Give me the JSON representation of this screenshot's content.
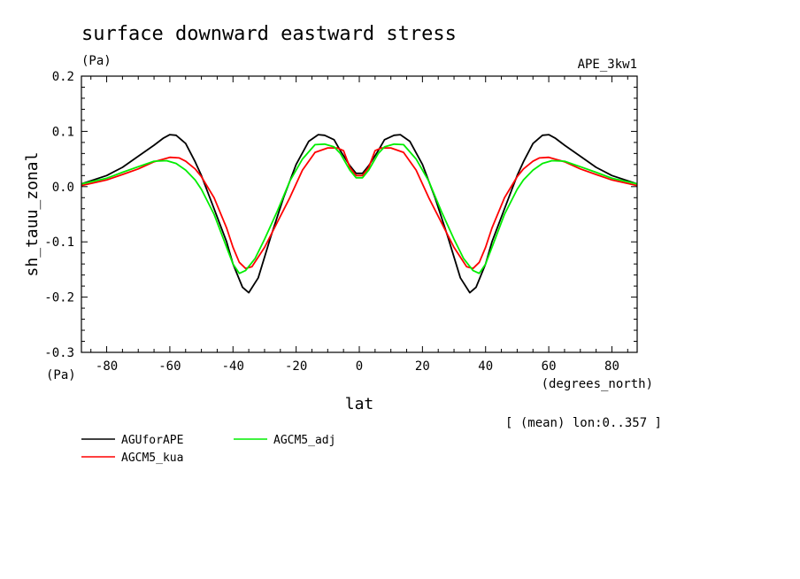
{
  "chart_data": {
    "type": "line",
    "title": "surface downward eastward stress",
    "title_units": "(Pa)",
    "run_label": "APE_3kw1",
    "ylabel": "sh_tauu_zonal",
    "y_units": "(Pa)",
    "xlabel": "lat",
    "x_units": "(degrees_north)",
    "note": "[ (mean) lon:0..357 ]",
    "xlim": [
      -88,
      88
    ],
    "ylim": [
      -0.3,
      0.2
    ],
    "x_ticks": [
      "-80",
      "-60",
      "-40",
      "-20",
      "0",
      "20",
      "40",
      "60",
      "80"
    ],
    "y_ticks": [
      "0.2",
      "0.1",
      "0.0",
      "-0.1",
      "-0.2",
      "-0.3"
    ],
    "grid": false,
    "series": [
      {
        "name": "AGUforAPE",
        "color": "#000000",
        "x": [
          -88,
          -80,
          -75,
          -70,
          -65,
          -62,
          -60,
          -58,
          -55,
          -52,
          -50,
          -46,
          -42,
          -40,
          -37,
          -35,
          -32,
          -28,
          -24,
          -20,
          -16,
          -13,
          -11,
          -8,
          -6,
          -3,
          -1,
          0,
          1,
          3,
          6,
          8,
          11,
          13,
          16,
          20,
          24,
          28,
          32,
          35,
          37,
          40,
          42,
          46,
          50,
          52,
          55,
          58,
          60,
          62,
          65,
          70,
          75,
          80,
          88
        ],
        "y": [
          0.005,
          0.02,
          0.035,
          0.055,
          0.075,
          0.088,
          0.094,
          0.093,
          0.078,
          0.045,
          0.02,
          -0.04,
          -0.1,
          -0.14,
          -0.182,
          -0.192,
          -0.165,
          -0.09,
          -0.02,
          0.04,
          0.082,
          0.094,
          0.093,
          0.085,
          0.065,
          0.038,
          0.024,
          0.024,
          0.024,
          0.038,
          0.065,
          0.085,
          0.093,
          0.094,
          0.082,
          0.04,
          -0.02,
          -0.09,
          -0.165,
          -0.192,
          -0.182,
          -0.14,
          -0.1,
          -0.04,
          0.02,
          0.045,
          0.078,
          0.093,
          0.094,
          0.088,
          0.075,
          0.055,
          0.035,
          0.02,
          0.005
        ]
      },
      {
        "name": "AGCM5_kua",
        "color": "#ff0000",
        "x": [
          -88,
          -80,
          -75,
          -70,
          -65,
          -60,
          -57,
          -55,
          -52,
          -50,
          -46,
          -42,
          -40,
          -38,
          -36,
          -34,
          -30,
          -26,
          -22,
          -18,
          -14,
          -10,
          -7,
          -5,
          -3,
          -1,
          0,
          1,
          3,
          5,
          7,
          10,
          14,
          18,
          22,
          26,
          30,
          34,
          36,
          38,
          40,
          42,
          46,
          50,
          52,
          55,
          57,
          60,
          65,
          70,
          75,
          80,
          88
        ],
        "y": [
          0.002,
          0.012,
          0.022,
          0.032,
          0.045,
          0.053,
          0.052,
          0.046,
          0.032,
          0.018,
          -0.02,
          -0.075,
          -0.11,
          -0.137,
          -0.148,
          -0.145,
          -0.11,
          -0.065,
          -0.02,
          0.03,
          0.062,
          0.07,
          0.07,
          0.065,
          0.035,
          0.02,
          0.02,
          0.02,
          0.035,
          0.065,
          0.07,
          0.07,
          0.062,
          0.03,
          -0.02,
          -0.065,
          -0.11,
          -0.145,
          -0.148,
          -0.137,
          -0.11,
          -0.075,
          -0.02,
          0.018,
          0.032,
          0.046,
          0.052,
          0.053,
          0.045,
          0.032,
          0.022,
          0.012,
          0.002
        ]
      },
      {
        "name": "AGCM5_adj",
        "color": "#00ee00",
        "x": [
          -88,
          -80,
          -75,
          -70,
          -65,
          -61,
          -58,
          -55,
          -52,
          -50,
          -46,
          -42,
          -40,
          -38,
          -36,
          -33,
          -30,
          -26,
          -22,
          -18,
          -14,
          -11,
          -8,
          -6,
          -3,
          -1,
          0,
          1,
          3,
          6,
          8,
          11,
          14,
          18,
          22,
          26,
          30,
          33,
          36,
          38,
          40,
          42,
          46,
          50,
          52,
          55,
          58,
          61,
          65,
          70,
          75,
          80,
          88
        ],
        "y": [
          0.005,
          0.015,
          0.026,
          0.036,
          0.046,
          0.047,
          0.042,
          0.03,
          0.012,
          -0.005,
          -0.05,
          -0.11,
          -0.14,
          -0.157,
          -0.152,
          -0.13,
          -0.095,
          -0.045,
          0.01,
          0.05,
          0.076,
          0.077,
          0.072,
          0.06,
          0.03,
          0.016,
          0.016,
          0.016,
          0.03,
          0.06,
          0.072,
          0.077,
          0.076,
          0.05,
          0.01,
          -0.045,
          -0.095,
          -0.13,
          -0.152,
          -0.157,
          -0.14,
          -0.11,
          -0.05,
          -0.005,
          0.012,
          0.03,
          0.042,
          0.047,
          0.046,
          0.036,
          0.026,
          0.015,
          0.005
        ]
      }
    ]
  }
}
